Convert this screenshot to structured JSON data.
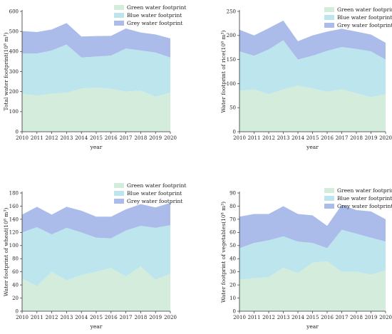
{
  "colors": {
    "green": "#d4ecdb",
    "blue": "#bce5ee",
    "grey": "#acbcea",
    "axis": "#333333"
  },
  "chart_data": [
    {
      "type": "area",
      "stacked": true,
      "xlabel": "year",
      "ylabel": "Total water footprint(10⁸ m³)",
      "x": [
        2010,
        2011,
        2012,
        2013,
        2014,
        2015,
        2016,
        2017,
        2018,
        2019,
        2020
      ],
      "ylim": [
        0,
        600
      ],
      "yticks": [
        0,
        100,
        200,
        300,
        400,
        500,
        600
      ],
      "legend_position": "top-right",
      "series": [
        {
          "name": "Green water footprint",
          "color_key": "green",
          "values": [
            190,
            180,
            190,
            195,
            215,
            220,
            215,
            200,
            205,
            175,
            195
          ]
        },
        {
          "name": "Blue water footprint",
          "color_key": "blue",
          "values": [
            200,
            210,
            215,
            240,
            155,
            155,
            165,
            215,
            200,
            220,
            175
          ]
        },
        {
          "name": "Grey water footprint",
          "color_key": "grey",
          "values": [
            112,
            107,
            105,
            107,
            105,
            102,
            98,
            100,
            90,
            90,
            95
          ]
        }
      ]
    },
    {
      "type": "area",
      "stacked": true,
      "xlabel": "year",
      "ylabel": "Water footprint of rice(10⁸ m³)",
      "x": [
        2010,
        2011,
        2012,
        2013,
        2014,
        2015,
        2016,
        2017,
        2018,
        2019,
        2020
      ],
      "ylim": [
        0,
        250
      ],
      "yticks": [
        0,
        50,
        100,
        150,
        200,
        250
      ],
      "legend_position": "top-right",
      "series": [
        {
          "name": "Green water footprint",
          "color_key": "green",
          "values": [
            85,
            88,
            78,
            88,
            96,
            90,
            83,
            88,
            80,
            72,
            78
          ]
        },
        {
          "name": "Blue water footprint",
          "color_key": "blue",
          "values": [
            82,
            70,
            93,
            102,
            54,
            68,
            85,
            88,
            92,
            95,
            72
          ]
        },
        {
          "name": "Grey water footprint",
          "color_key": "grey",
          "values": [
            45,
            42,
            44,
            41,
            38,
            42,
            40,
            38,
            36,
            35,
            35
          ]
        }
      ]
    },
    {
      "type": "area",
      "stacked": true,
      "xlabel": "year",
      "ylabel": "Water footprint of wheat(10⁸ m³)",
      "x": [
        2010,
        2011,
        2012,
        2013,
        2014,
        2015,
        2016,
        2017,
        2018,
        2019,
        2020
      ],
      "ylim": [
        0,
        180
      ],
      "yticks": [
        0,
        20,
        40,
        60,
        80,
        100,
        120,
        140,
        160,
        180
      ],
      "legend_position": "top-right",
      "series": [
        {
          "name": "Green water footprint",
          "color_key": "green",
          "values": [
            50,
            38,
            60,
            47,
            55,
            60,
            66,
            53,
            68,
            48,
            57
          ]
        },
        {
          "name": "Blue water footprint",
          "color_key": "blue",
          "values": [
            70,
            90,
            57,
            80,
            65,
            52,
            45,
            70,
            62,
            79,
            74
          ]
        },
        {
          "name": "Grey water footprint",
          "color_key": "grey",
          "values": [
            27,
            31,
            30,
            32,
            33,
            32,
            33,
            32,
            33,
            31,
            34
          ]
        }
      ]
    },
    {
      "type": "area",
      "stacked": true,
      "xlabel": "year",
      "ylabel": "Water footprint of vegetables(10⁸ m³)",
      "x": [
        2010,
        2011,
        2012,
        2013,
        2014,
        2015,
        2016,
        2017,
        2018,
        2019,
        2020
      ],
      "ylim": [
        0,
        90
      ],
      "yticks": [
        0,
        10,
        20,
        30,
        40,
        50,
        60,
        70,
        80,
        90
      ],
      "legend_position": "top-right",
      "series": [
        {
          "name": "Green water footprint",
          "color_key": "green",
          "values": [
            24,
            25,
            26,
            33,
            29,
            37,
            38,
            30,
            30,
            28,
            31
          ]
        },
        {
          "name": "Blue water footprint",
          "color_key": "blue",
          "values": [
            24,
            27,
            28,
            24,
            24,
            15,
            10,
            32,
            29,
            28,
            22
          ]
        },
        {
          "name": "Grey water footprint",
          "color_key": "grey",
          "values": [
            24,
            22,
            20,
            23,
            21,
            21,
            17,
            19,
            18,
            20,
            17
          ]
        }
      ]
    }
  ]
}
